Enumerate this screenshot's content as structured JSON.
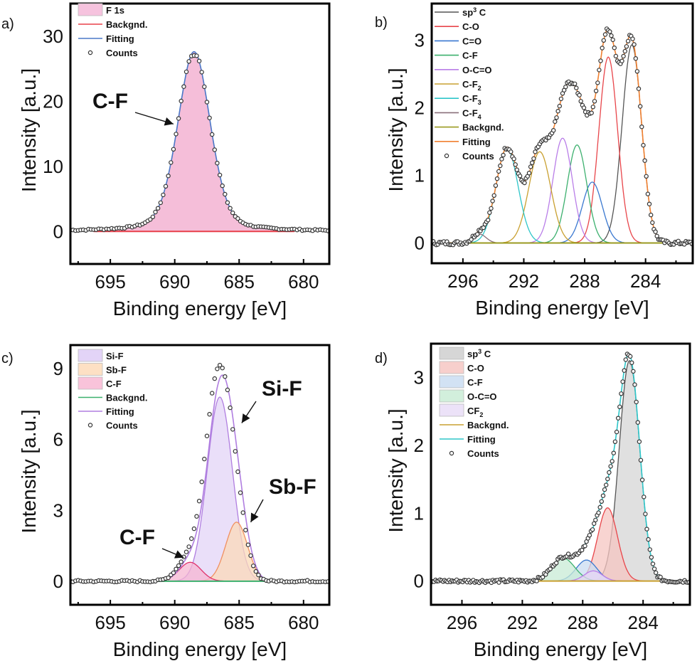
{
  "chart_data": [
    {
      "id": "a",
      "type": "line",
      "panel_label": "a)",
      "title": "",
      "xlabel": "Binding energy [eV]",
      "ylabel": "Intensity [a.u.]",
      "xlim": [
        698.1,
        678.0
      ],
      "ylim": [
        -5,
        35
      ],
      "x_reversed": true,
      "xticks": [
        695,
        690,
        685,
        680
      ],
      "xminor": [
        697.5,
        692.5,
        687.5,
        682.5
      ],
      "yticks": [
        0,
        10,
        20,
        30
      ],
      "grid": false,
      "legend_position": "top-left",
      "components": [
        {
          "name": "F 1s",
          "center": 688.5,
          "height": 27.6,
          "fwhm": 3.0,
          "color": "#f2a8cc",
          "fill": true
        }
      ],
      "background": {
        "name": "Backgnd.",
        "value": 0,
        "color": "#e8404a"
      },
      "fitting": {
        "name": "Fitting",
        "color": "#4a78c8"
      },
      "counts": {
        "name": "Counts",
        "peak": 27.0,
        "range": [
          698.1,
          678.0
        ],
        "step": 0.2,
        "noise": 0.12
      },
      "legend": [
        {
          "label": "F 1s",
          "kind": "patch",
          "color": "#f6c3de"
        },
        {
          "label": "Backgnd.",
          "kind": "line",
          "color": "#e8404a"
        },
        {
          "label": "Fitting",
          "kind": "line",
          "color": "#4a78c8"
        },
        {
          "label": "Counts",
          "kind": "marker",
          "color": "#333333"
        }
      ],
      "annotations": [
        {
          "text": "C-F",
          "target_x": 690.1,
          "target_y": 16.5
        }
      ]
    },
    {
      "id": "b",
      "type": "line",
      "panel_label": "b)",
      "title": "",
      "xlabel": "Binding energy [eV]",
      "ylabel": "Intensity [a.u.]",
      "xlim": [
        298.05,
        280.9
      ],
      "ylim": [
        -0.3,
        3.54
      ],
      "x_reversed": true,
      "xticks": [
        296,
        292,
        288,
        284
      ],
      "xminor": [
        294,
        290,
        286,
        282
      ],
      "yticks": [
        0,
        1,
        2,
        3
      ],
      "grid": false,
      "legend_position": "top-left",
      "components": [
        {
          "name": "sp3 C",
          "center": 284.9,
          "height": 2.93,
          "fwhm": 1.5,
          "color": "#555555",
          "fill": false
        },
        {
          "name": "C-O",
          "center": 286.45,
          "height": 2.75,
          "fwhm": 1.45,
          "color": "#e8454a",
          "fill": false
        },
        {
          "name": "C=O",
          "center": 287.5,
          "height": 0.9,
          "fwhm": 1.55,
          "color": "#3a78d0",
          "fill": false
        },
        {
          "name": "C-F",
          "center": 288.5,
          "height": 1.45,
          "fwhm": 1.5,
          "color": "#3cb06e",
          "fill": false
        },
        {
          "name": "O-C=O",
          "center": 289.45,
          "height": 1.55,
          "fwhm": 1.5,
          "color": "#b97ee8",
          "fill": false
        },
        {
          "name": "C-F2",
          "center": 290.95,
          "height": 1.35,
          "fwhm": 1.7,
          "color": "#c9a030",
          "fill": false
        },
        {
          "name": "C-F3",
          "center": 293.1,
          "height": 1.4,
          "fwhm": 1.7,
          "color": "#2ec6c9",
          "fill": false
        },
        {
          "name": "C-F4",
          "center": 294.9,
          "height": 0.13,
          "fwhm": 1.0,
          "color": "#8a6f7a",
          "fill": false
        }
      ],
      "background": {
        "name": "Backgnd.",
        "value": 0,
        "color": "#9a9a20"
      },
      "fitting": {
        "name": "Fitting",
        "color": "#f08030"
      },
      "counts": {
        "name": "Counts",
        "range": [
          298.05,
          280.9
        ],
        "step": 0.1,
        "noise": 0.03
      },
      "legend": [
        {
          "label": "sp",
          "sup": "3",
          "suffix": " C",
          "kind": "line",
          "color": "#555555"
        },
        {
          "label": "C-O",
          "kind": "line",
          "color": "#e8454a"
        },
        {
          "label": "C=O",
          "kind": "line",
          "color": "#3a78d0"
        },
        {
          "label": "C-F",
          "kind": "line",
          "color": "#3cb06e"
        },
        {
          "label": "O-C=O",
          "kind": "line",
          "color": "#b97ee8"
        },
        {
          "label": "C-F",
          "sub": "2",
          "kind": "line",
          "color": "#c9a030"
        },
        {
          "label": "C-F",
          "sub": "3",
          "kind": "line",
          "color": "#2ec6c9"
        },
        {
          "label": "C-F",
          "sub": "4",
          "kind": "line",
          "color": "#8a6f7a"
        },
        {
          "label": "Backgnd.",
          "kind": "line",
          "color": "#9a9a20"
        },
        {
          "label": "Fitting",
          "kind": "line",
          "color": "#f08030"
        },
        {
          "label": "Counts",
          "kind": "marker",
          "color": "#333333"
        }
      ],
      "annotations": []
    },
    {
      "id": "c",
      "type": "line",
      "panel_label": "c)",
      "title": "",
      "xlabel": "Binding energy [eV]",
      "ylabel": "Intensity [a.u.]",
      "xlim": [
        698.1,
        678.0
      ],
      "ylim": [
        -1.0,
        10.0
      ],
      "x_reversed": true,
      "xticks": [
        695,
        690,
        685,
        680
      ],
      "xminor": [
        697.5,
        692.5,
        687.5,
        682.5
      ],
      "yticks": [
        0,
        3,
        6,
        9
      ],
      "grid": false,
      "legend_position": "top-left",
      "components": [
        {
          "name": "Si-F",
          "center": 686.5,
          "height": 7.8,
          "fwhm": 2.3,
          "color": "#b07ee0",
          "fillColor": "#e3d4f7",
          "fill": true
        },
        {
          "name": "Sb-F",
          "center": 685.2,
          "height": 2.5,
          "fwhm": 2.0,
          "color": "#f09060",
          "fillColor": "#fbd9b8",
          "fill": true
        },
        {
          "name": "C-F",
          "center": 688.8,
          "height": 0.8,
          "fwhm": 2.0,
          "color": "#e0306a",
          "fillColor": "#f6b6d2",
          "fill": true
        }
      ],
      "background": {
        "name": "Backgnd.",
        "value": 0,
        "color": "#3cb06e"
      },
      "fitting": {
        "name": "Fitting",
        "color": "#b07ee0"
      },
      "counts": {
        "name": "Counts",
        "range": [
          698.1,
          678.0
        ],
        "step": 0.2,
        "noise": 0.04,
        "scale": 1.05,
        "shift": -0.2
      },
      "legend": [
        {
          "label": "Si-F",
          "kind": "patch",
          "color": "#e3d4f7"
        },
        {
          "label": "Sb-F",
          "kind": "patch",
          "color": "#fde0c4"
        },
        {
          "label": "C-F",
          "kind": "patch",
          "color": "#f9c3da"
        },
        {
          "label": "Backgnd.",
          "kind": "line",
          "color": "#3cb06e"
        },
        {
          "label": "Fitting",
          "kind": "line",
          "color": "#b07ee0"
        },
        {
          "label": "Counts",
          "kind": "marker",
          "color": "#333333"
        }
      ],
      "annotations": [
        {
          "text": "Si-F",
          "target_x": 684.8,
          "target_y": 6.7
        },
        {
          "text": "Sb-F",
          "target_x": 684.1,
          "target_y": 2.5
        },
        {
          "text": "C-F",
          "target_x": 689.3,
          "target_y": 1.0
        }
      ]
    },
    {
      "id": "d",
      "type": "line",
      "panel_label": "d)",
      "title": "",
      "xlabel": "Binding energy [eV]",
      "ylabel": "Intensity [a.u.]",
      "xlim": [
        298.05,
        280.9
      ],
      "ylim": [
        -0.35,
        3.5
      ],
      "x_reversed": true,
      "xticks": [
        296,
        292,
        288,
        284
      ],
      "xminor": [
        294,
        290,
        286,
        282
      ],
      "yticks": [
        0,
        1,
        2,
        3
      ],
      "grid": false,
      "legend_position": "top-left",
      "components": [
        {
          "name": "sp3 C",
          "center": 284.9,
          "height": 3.25,
          "fwhm": 1.6,
          "color": "#555555",
          "fillColor": "#d6d6d6",
          "fill": true
        },
        {
          "name": "C-O",
          "center": 286.35,
          "height": 1.08,
          "fwhm": 1.55,
          "color": "#e8454a",
          "fillColor": "#f5c6c2",
          "fill": true
        },
        {
          "name": "C-F",
          "center": 287.75,
          "height": 0.31,
          "fwhm": 1.6,
          "color": "#3a78d0",
          "fillColor": "#c9dcf2",
          "fill": true
        },
        {
          "name": "O-C=O",
          "center": 289.3,
          "height": 0.34,
          "fwhm": 1.8,
          "color": "#3cb06e",
          "fillColor": "#c8ebd6",
          "fill": true
        },
        {
          "name": "CF2",
          "center": 287.3,
          "height": 0.15,
          "fwhm": 1.4,
          "color": "#b97ee8",
          "fillColor": "#e5d6f6",
          "fill": true
        }
      ],
      "background": {
        "name": "Backgnd.",
        "value": 0,
        "color": "#c9a030"
      },
      "fitting": {
        "name": "Fitting",
        "color": "#2ec6c9"
      },
      "counts": {
        "name": "Counts",
        "range": [
          298.05,
          280.9
        ],
        "step": 0.1,
        "noise": 0.025
      },
      "legend": [
        {
          "label": "sp",
          "sup": "3",
          "suffix": " C",
          "kind": "patch",
          "color": "#d6d6d6"
        },
        {
          "label": "C-O",
          "kind": "patch",
          "color": "#f7cfcc"
        },
        {
          "label": "C-F",
          "kind": "patch",
          "color": "#d2e2f4"
        },
        {
          "label": "O-C=O",
          "kind": "patch",
          "color": "#d2efdc"
        },
        {
          "label": "CF",
          "sub": "2",
          "kind": "patch",
          "color": "#ece2f8"
        },
        {
          "label": "Backgnd.",
          "kind": "line",
          "color": "#c9a030"
        },
        {
          "label": "Fitting",
          "kind": "line",
          "color": "#2ec6c9"
        },
        {
          "label": "Counts",
          "kind": "marker",
          "color": "#333333"
        }
      ],
      "annotations": []
    }
  ]
}
